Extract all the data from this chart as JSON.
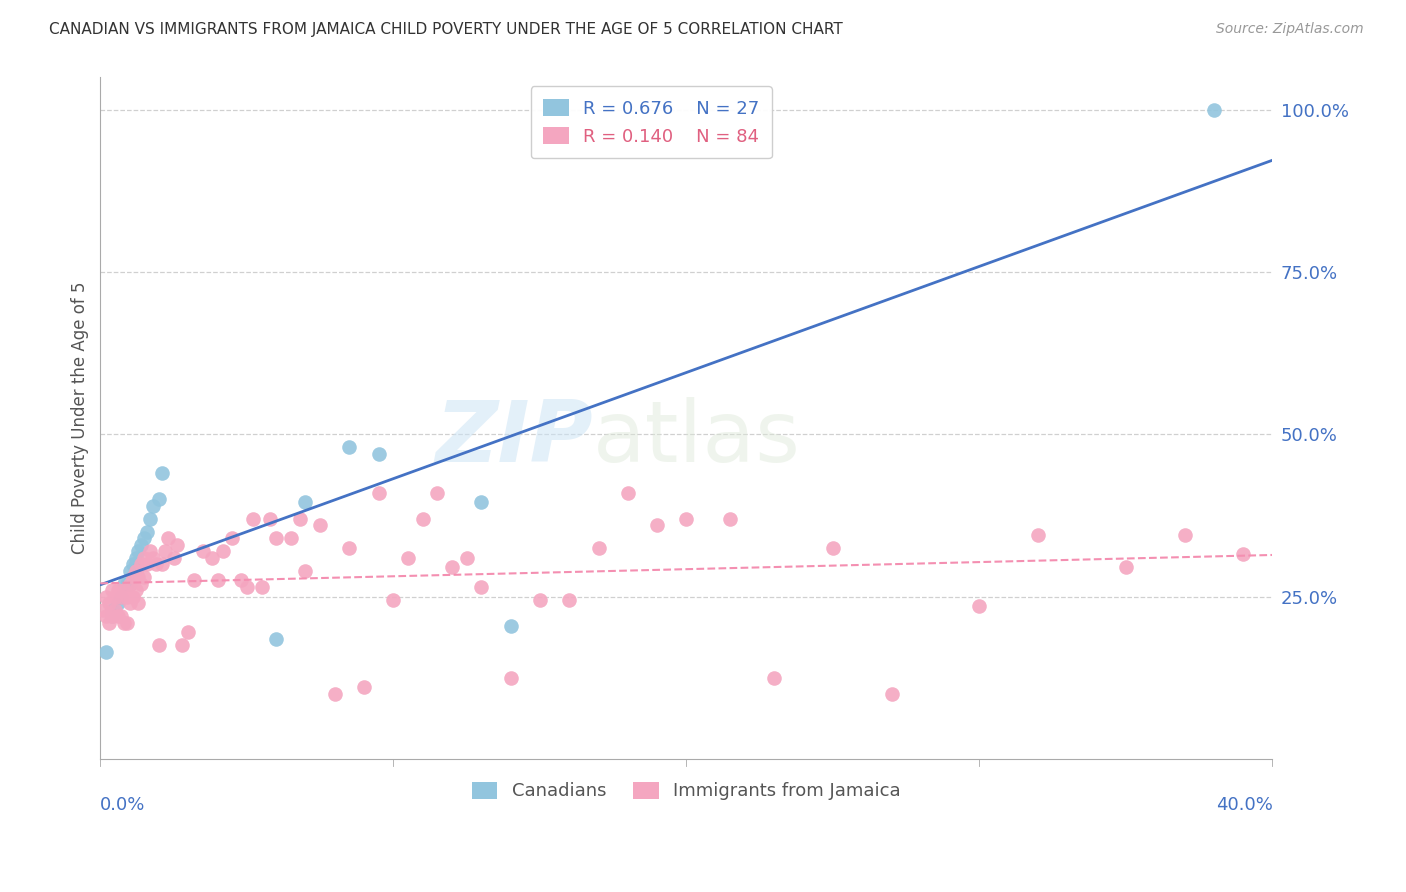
{
  "title": "CANADIAN VS IMMIGRANTS FROM JAMAICA CHILD POVERTY UNDER THE AGE OF 5 CORRELATION CHART",
  "source": "Source: ZipAtlas.com",
  "xlabel_bottom_left": "0.0%",
  "xlabel_bottom_right": "40.0%",
  "ylabel": "Child Poverty Under the Age of 5",
  "right_yticks": [
    "100.0%",
    "75.0%",
    "50.0%",
    "25.0%"
  ],
  "right_ytick_vals": [
    1.0,
    0.75,
    0.5,
    0.25
  ],
  "legend_canadian_r": "0.676",
  "legend_canadian_n": "27",
  "legend_jamaica_r": "0.140",
  "legend_jamaica_n": "84",
  "canadian_color": "#92c5de",
  "jamaica_color": "#f4a6c0",
  "canadian_line_color": "#4472c4",
  "jamaica_line_color": "#f48fb1",
  "text_color_blue": "#4472c4",
  "text_color_pink": "#e06080",
  "watermark_zip": "ZIP",
  "watermark_atlas": "atlas",
  "canadians_label": "Canadians",
  "jamaica_label": "Immigrants from Jamaica",
  "canadians_x": [
    0.002,
    0.004,
    0.004,
    0.006,
    0.007,
    0.008,
    0.009,
    0.01,
    0.01,
    0.011,
    0.012,
    0.012,
    0.013,
    0.014,
    0.015,
    0.016,
    0.017,
    0.018,
    0.02,
    0.021,
    0.06,
    0.07,
    0.085,
    0.095,
    0.13,
    0.14,
    0.38
  ],
  "canadians_y": [
    0.165,
    0.22,
    0.23,
    0.24,
    0.25,
    0.27,
    0.27,
    0.27,
    0.29,
    0.3,
    0.3,
    0.31,
    0.32,
    0.33,
    0.34,
    0.35,
    0.37,
    0.39,
    0.4,
    0.44,
    0.185,
    0.395,
    0.48,
    0.47,
    0.395,
    0.205,
    1.0
  ],
  "jamaica_x": [
    0.001,
    0.002,
    0.002,
    0.003,
    0.003,
    0.004,
    0.004,
    0.005,
    0.005,
    0.006,
    0.006,
    0.007,
    0.007,
    0.008,
    0.008,
    0.009,
    0.009,
    0.01,
    0.01,
    0.011,
    0.011,
    0.012,
    0.012,
    0.013,
    0.013,
    0.014,
    0.014,
    0.015,
    0.015,
    0.016,
    0.017,
    0.018,
    0.019,
    0.02,
    0.021,
    0.022,
    0.023,
    0.025,
    0.026,
    0.028,
    0.03,
    0.032,
    0.035,
    0.038,
    0.04,
    0.042,
    0.045,
    0.048,
    0.05,
    0.052,
    0.055,
    0.058,
    0.06,
    0.065,
    0.068,
    0.07,
    0.075,
    0.08,
    0.085,
    0.09,
    0.095,
    0.1,
    0.105,
    0.11,
    0.115,
    0.12,
    0.125,
    0.13,
    0.14,
    0.15,
    0.16,
    0.17,
    0.18,
    0.19,
    0.2,
    0.215,
    0.23,
    0.25,
    0.27,
    0.3,
    0.32,
    0.35,
    0.37,
    0.39
  ],
  "jamaica_y": [
    0.23,
    0.22,
    0.25,
    0.21,
    0.24,
    0.22,
    0.26,
    0.23,
    0.25,
    0.22,
    0.26,
    0.22,
    0.25,
    0.21,
    0.26,
    0.21,
    0.25,
    0.24,
    0.27,
    0.25,
    0.28,
    0.26,
    0.29,
    0.24,
    0.28,
    0.27,
    0.3,
    0.28,
    0.31,
    0.3,
    0.32,
    0.31,
    0.3,
    0.175,
    0.3,
    0.32,
    0.34,
    0.31,
    0.33,
    0.175,
    0.195,
    0.275,
    0.32,
    0.31,
    0.275,
    0.32,
    0.34,
    0.275,
    0.265,
    0.37,
    0.265,
    0.37,
    0.34,
    0.34,
    0.37,
    0.29,
    0.36,
    0.1,
    0.325,
    0.11,
    0.41,
    0.245,
    0.31,
    0.37,
    0.41,
    0.295,
    0.31,
    0.265,
    0.125,
    0.245,
    0.245,
    0.325,
    0.41,
    0.36,
    0.37,
    0.37,
    0.125,
    0.325,
    0.1,
    0.235,
    0.345,
    0.295,
    0.345,
    0.315
  ],
  "xlim": [
    0.0,
    0.4
  ],
  "ylim": [
    0.0,
    1.05
  ],
  "background_color": "#ffffff",
  "grid_color": "#d0d0d0"
}
